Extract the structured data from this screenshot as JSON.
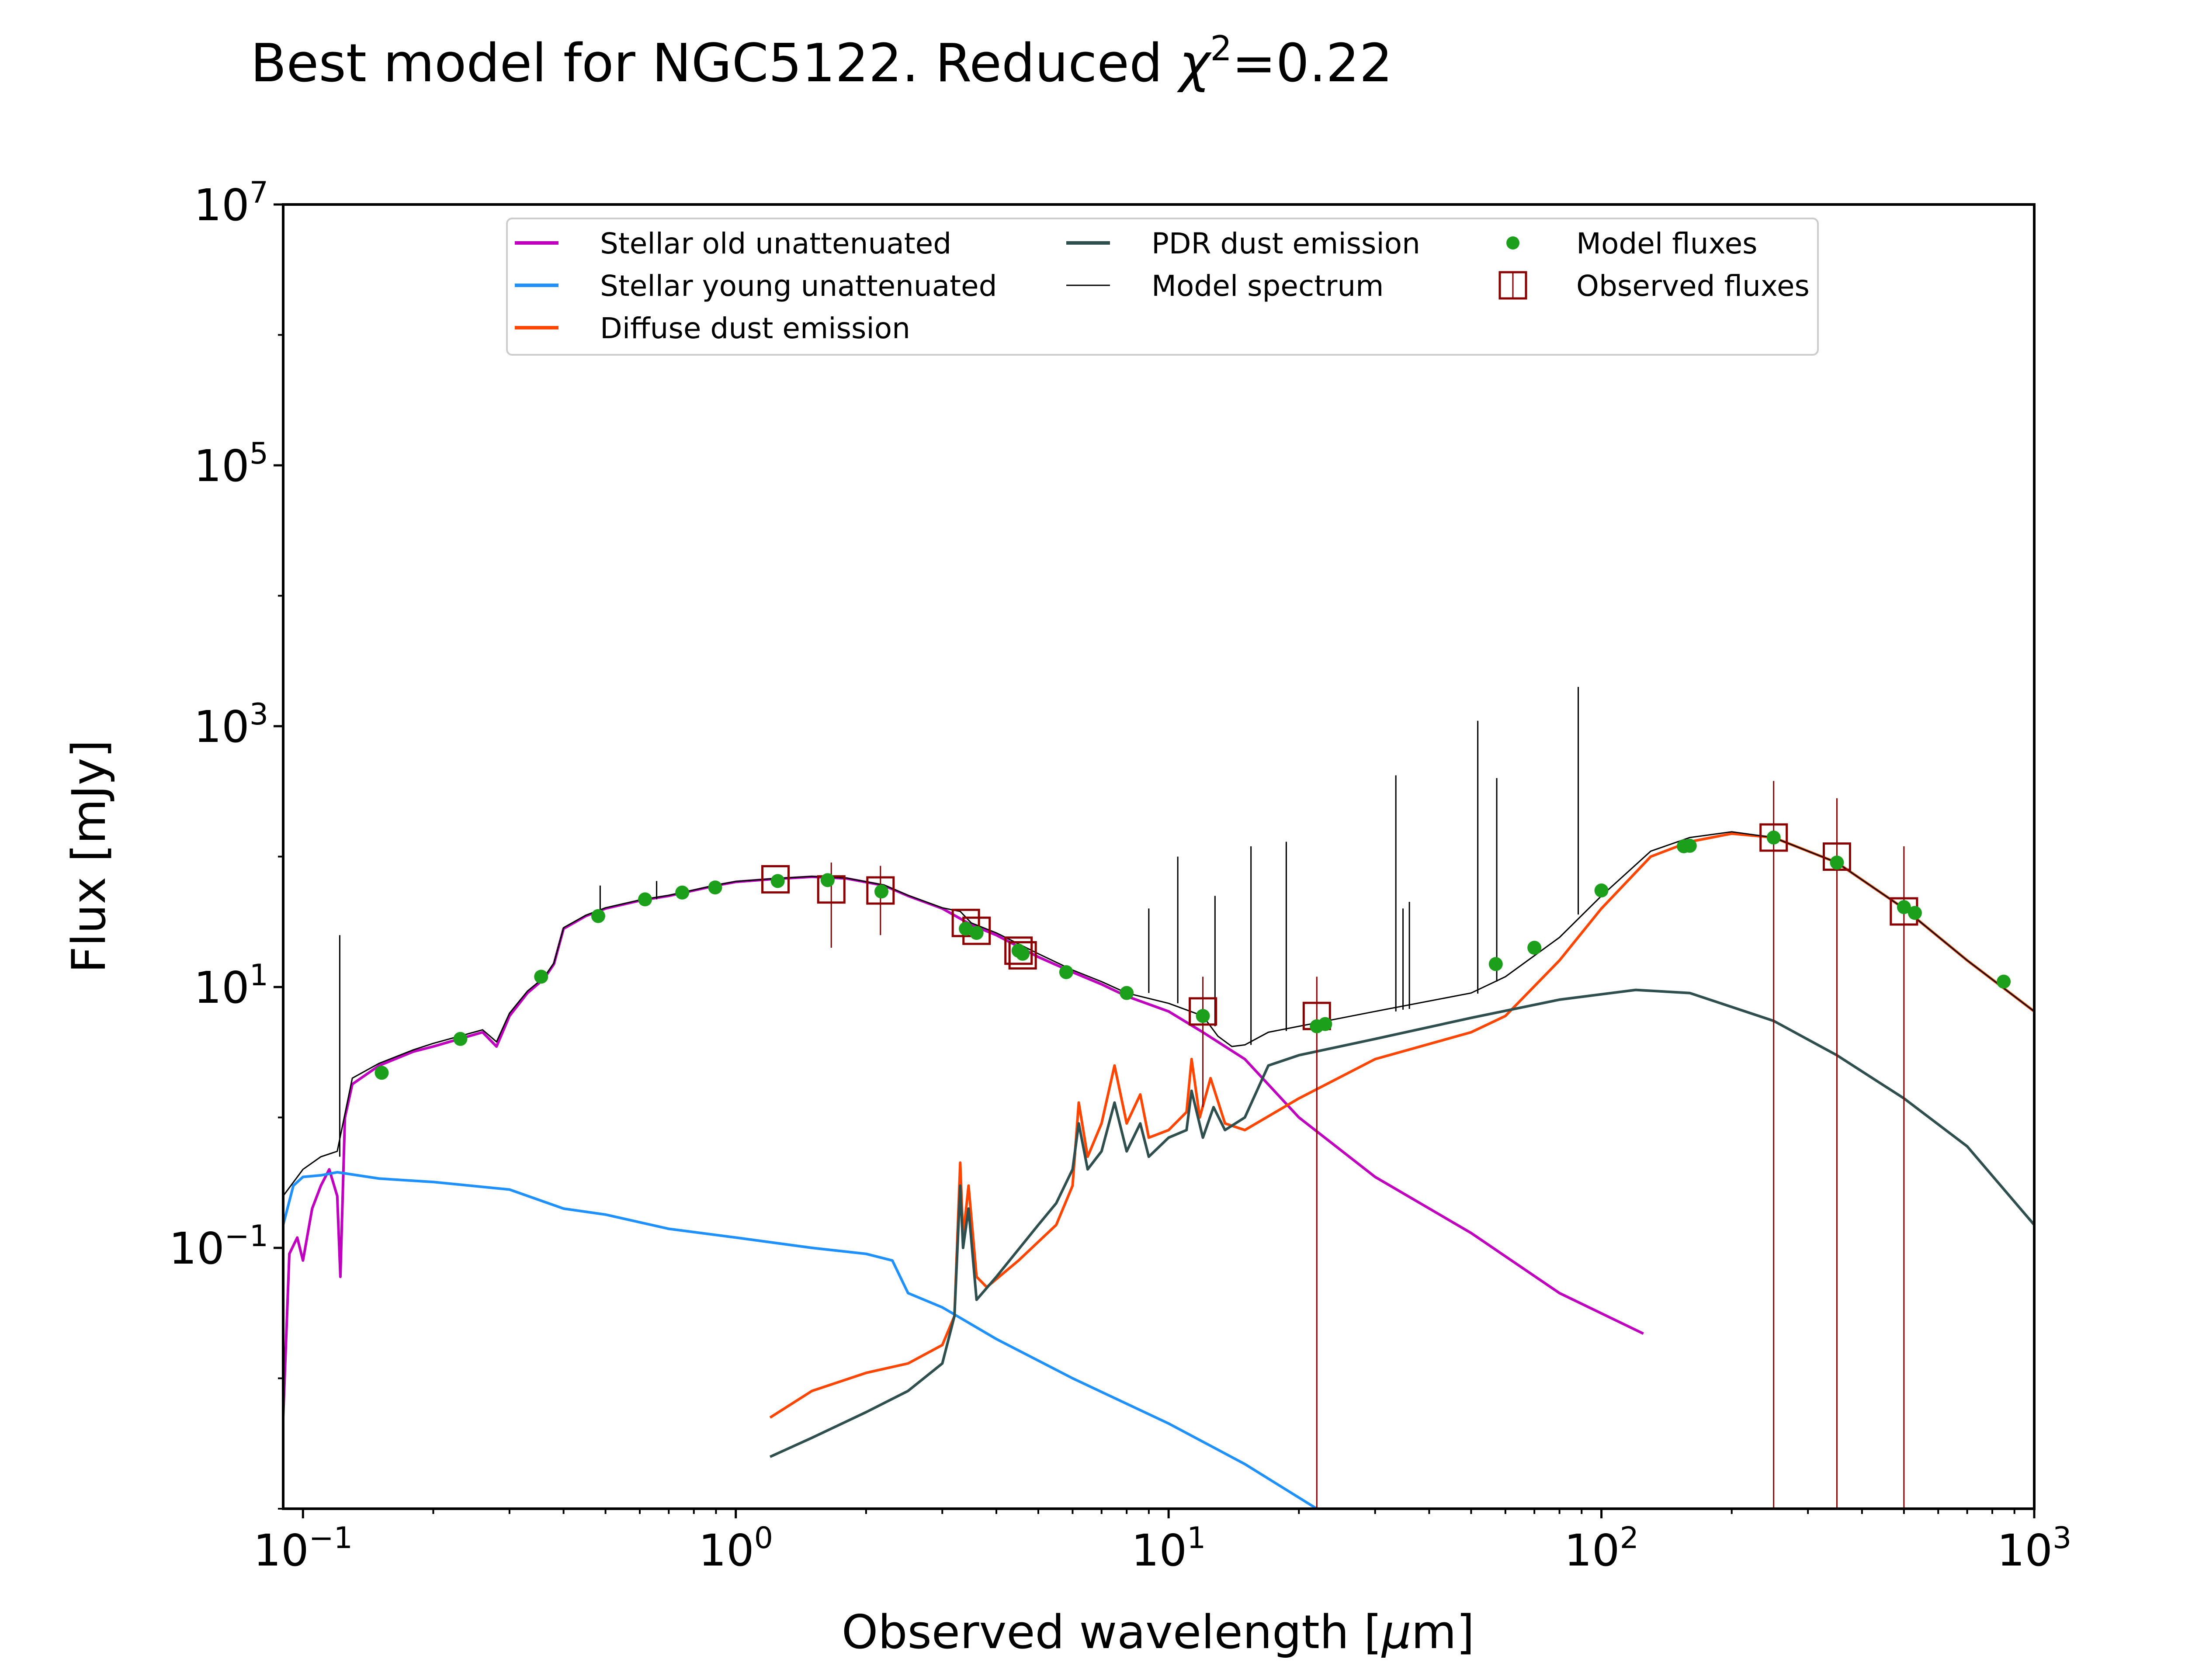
{
  "chart_data": {
    "type": "line",
    "title_main": "Best model for NGC5122. Reduced ",
    "title_chi": "χ",
    "title_sup": "2",
    "title_value": "=0.22",
    "xlabel_main": "Observed wavelength [",
    "xlabel_mu": "μ",
    "xlabel_unit": "m]",
    "ylabel": "Flux [mJy]",
    "x_scale": "log",
    "y_scale": "log",
    "xlim": [
      0.09,
      1000
    ],
    "ylim": [
      0.001,
      10000000
    ],
    "grid": false,
    "legend_placement": "upper-center",
    "x_ticks": [
      {
        "value": 0.1,
        "base": "10",
        "exp": "−1"
      },
      {
        "value": 1,
        "base": "10",
        "exp": "0"
      },
      {
        "value": 10,
        "base": "10",
        "exp": "1"
      },
      {
        "value": 100,
        "base": "10",
        "exp": "2"
      },
      {
        "value": 1000,
        "base": "10",
        "exp": "3"
      }
    ],
    "y_ticks": [
      {
        "value": 0.1,
        "base": "10",
        "exp": "−1"
      },
      {
        "value": 10,
        "base": "10",
        "exp": "1"
      },
      {
        "value": 1000,
        "base": "10",
        "exp": "3"
      },
      {
        "value": 100000,
        "base": "10",
        "exp": "5"
      },
      {
        "value": 10000000,
        "base": "10",
        "exp": "7"
      }
    ],
    "legend": [
      {
        "label": "Stellar old unattenuated",
        "kind": "line",
        "color": "#bf00bf",
        "col": 0,
        "row": 0
      },
      {
        "label": "Stellar young unattenuated",
        "kind": "line",
        "color": "#1e90ff",
        "col": 0,
        "row": 1
      },
      {
        "label": "Diffuse dust emission",
        "kind": "line",
        "color": "#ff4500",
        "col": 0,
        "row": 2
      },
      {
        "label": "PDR dust emission",
        "kind": "line",
        "color": "#2f4f4f",
        "col": 1,
        "row": 0
      },
      {
        "label": "Model spectrum",
        "kind": "thinline",
        "color": "#000000",
        "col": 1,
        "row": 1
      },
      {
        "label": "Model fluxes",
        "kind": "dot",
        "color": "#1ca01c",
        "col": 2,
        "row": 0
      },
      {
        "label": "Observed fluxes",
        "kind": "square",
        "color": "#8b0000",
        "col": 2,
        "row": 1
      }
    ],
    "series": [
      {
        "name": "Stellar old unattenuated",
        "color": "#bf00bf",
        "width": 6,
        "points": [
          [
            0.09,
            0.005
          ],
          [
            0.093,
            0.09
          ],
          [
            0.097,
            0.12
          ],
          [
            0.1,
            0.08
          ],
          [
            0.105,
            0.2
          ],
          [
            0.11,
            0.3
          ],
          [
            0.115,
            0.4
          ],
          [
            0.12,
            0.25
          ],
          [
            0.122,
            0.06
          ],
          [
            0.125,
            1.0
          ],
          [
            0.13,
            1.8
          ],
          [
            0.15,
            2.5
          ],
          [
            0.18,
            3.2
          ],
          [
            0.2,
            3.5
          ],
          [
            0.23,
            4.0
          ],
          [
            0.26,
            4.5
          ],
          [
            0.28,
            3.5
          ],
          [
            0.3,
            6.0
          ],
          [
            0.33,
            9.0
          ],
          [
            0.36,
            11.5
          ],
          [
            0.38,
            15.0
          ],
          [
            0.4,
            28.0
          ],
          [
            0.45,
            35.0
          ],
          [
            0.5,
            40.0
          ],
          [
            0.6,
            46.0
          ],
          [
            0.7,
            50.0
          ],
          [
            0.8,
            55.0
          ],
          [
            0.9,
            60.0
          ],
          [
            1.0,
            64.0
          ],
          [
            1.2,
            67.0
          ],
          [
            1.5,
            70.0
          ],
          [
            1.8,
            68.0
          ],
          [
            2.2,
            60.0
          ],
          [
            2.5,
            50.0
          ],
          [
            3.0,
            40.0
          ],
          [
            3.5,
            30.0
          ],
          [
            4.0,
            25.0
          ],
          [
            5.0,
            17.0
          ],
          [
            6.0,
            13.0
          ],
          [
            7.0,
            10.5
          ],
          [
            8.0,
            8.5
          ],
          [
            10.0,
            6.5
          ],
          [
            12.0,
            4.5
          ],
          [
            15.0,
            2.8
          ],
          [
            20.0,
            1.0
          ],
          [
            30.0,
            0.35
          ],
          [
            50.0,
            0.13
          ],
          [
            80.0,
            0.045
          ],
          [
            125.0,
            0.022
          ]
        ]
      },
      {
        "name": "Stellar young unattenuated",
        "color": "#1e90ff",
        "width": 6,
        "points": [
          [
            0.09,
            0.15
          ],
          [
            0.095,
            0.3
          ],
          [
            0.1,
            0.35
          ],
          [
            0.11,
            0.36
          ],
          [
            0.12,
            0.38
          ],
          [
            0.15,
            0.34
          ],
          [
            0.2,
            0.32
          ],
          [
            0.3,
            0.28
          ],
          [
            0.4,
            0.2
          ],
          [
            0.5,
            0.18
          ],
          [
            0.7,
            0.14
          ],
          [
            1.0,
            0.12
          ],
          [
            1.5,
            0.1
          ],
          [
            2.0,
            0.09
          ],
          [
            2.3,
            0.08
          ],
          [
            2.5,
            0.045
          ],
          [
            3.0,
            0.035
          ],
          [
            4.0,
            0.02
          ],
          [
            6.0,
            0.01
          ],
          [
            10.0,
            0.0045
          ],
          [
            15.0,
            0.0022
          ],
          [
            22.0,
            0.001
          ]
        ]
      },
      {
        "name": "Diffuse dust emission",
        "color": "#ff4500",
        "width": 6,
        "points": [
          [
            1.2,
            0.005
          ],
          [
            1.5,
            0.008
          ],
          [
            2.0,
            0.011
          ],
          [
            2.5,
            0.013
          ],
          [
            3.0,
            0.018
          ],
          [
            3.2,
            0.03
          ],
          [
            3.3,
            0.45
          ],
          [
            3.35,
            0.12
          ],
          [
            3.45,
            0.3
          ],
          [
            3.6,
            0.06
          ],
          [
            3.8,
            0.05
          ],
          [
            4.5,
            0.08
          ],
          [
            5.5,
            0.15
          ],
          [
            6.0,
            0.3
          ],
          [
            6.2,
            1.3
          ],
          [
            6.5,
            0.5
          ],
          [
            7.0,
            0.9
          ],
          [
            7.5,
            2.5
          ],
          [
            8.0,
            0.9
          ],
          [
            8.6,
            1.5
          ],
          [
            9.0,
            0.7
          ],
          [
            10.0,
            0.8
          ],
          [
            11.0,
            1.1
          ],
          [
            11.3,
            2.8
          ],
          [
            11.8,
            1.0
          ],
          [
            12.5,
            2.0
          ],
          [
            13.5,
            0.9
          ],
          [
            15.0,
            0.8
          ],
          [
            20.0,
            1.4
          ],
          [
            30.0,
            2.8
          ],
          [
            50.0,
            4.5
          ],
          [
            60.0,
            6.0
          ],
          [
            80.0,
            16.0
          ],
          [
            100.0,
            40.0
          ],
          [
            130.0,
            100.0
          ],
          [
            160.0,
            130.0
          ],
          [
            200.0,
            150.0
          ],
          [
            250.0,
            140.0
          ],
          [
            350.0,
            90.0
          ],
          [
            500.0,
            40.0
          ],
          [
            700.0,
            16.0
          ],
          [
            1000.0,
            6.5
          ]
        ]
      },
      {
        "name": "PDR dust emission",
        "color": "#2f4f4f",
        "width": 6,
        "points": [
          [
            1.2,
            0.0025
          ],
          [
            1.5,
            0.0035
          ],
          [
            2.0,
            0.0055
          ],
          [
            2.5,
            0.008
          ],
          [
            3.0,
            0.013
          ],
          [
            3.2,
            0.03
          ],
          [
            3.3,
            0.3
          ],
          [
            3.35,
            0.1
          ],
          [
            3.45,
            0.2
          ],
          [
            3.6,
            0.04
          ],
          [
            4.0,
            0.06
          ],
          [
            5.0,
            0.15
          ],
          [
            5.5,
            0.22
          ],
          [
            6.0,
            0.4
          ],
          [
            6.2,
            0.9
          ],
          [
            6.5,
            0.4
          ],
          [
            7.0,
            0.55
          ],
          [
            7.5,
            1.3
          ],
          [
            8.0,
            0.55
          ],
          [
            8.6,
            0.9
          ],
          [
            9.0,
            0.5
          ],
          [
            10.0,
            0.7
          ],
          [
            11.0,
            0.8
          ],
          [
            11.3,
            1.6
          ],
          [
            12.0,
            0.7
          ],
          [
            12.7,
            1.2
          ],
          [
            13.5,
            0.8
          ],
          [
            15.0,
            1.0
          ],
          [
            17.0,
            2.5
          ],
          [
            20.0,
            3.0
          ],
          [
            30.0,
            4.0
          ],
          [
            50.0,
            5.8
          ],
          [
            80.0,
            8.0
          ],
          [
            120.0,
            9.5
          ],
          [
            160.0,
            9.0
          ],
          [
            250.0,
            5.5
          ],
          [
            350.0,
            3.0
          ],
          [
            500.0,
            1.4
          ],
          [
            700.0,
            0.6
          ],
          [
            1000.0,
            0.15
          ]
        ]
      },
      {
        "name": "Model spectrum",
        "color": "#000000",
        "width": 3,
        "points": [
          [
            0.09,
            0.25
          ],
          [
            0.1,
            0.4
          ],
          [
            0.11,
            0.5
          ],
          [
            0.12,
            0.55
          ],
          [
            0.13,
            2.0
          ],
          [
            0.15,
            2.6
          ],
          [
            0.18,
            3.3
          ],
          [
            0.2,
            3.7
          ],
          [
            0.23,
            4.2
          ],
          [
            0.26,
            4.7
          ],
          [
            0.28,
            3.8
          ],
          [
            0.3,
            6.3
          ],
          [
            0.33,
            9.3
          ],
          [
            0.36,
            11.8
          ],
          [
            0.38,
            15.3
          ],
          [
            0.4,
            28.5
          ],
          [
            0.45,
            35.5
          ],
          [
            0.5,
            40.5
          ],
          [
            0.6,
            46.5
          ],
          [
            0.7,
            50.5
          ],
          [
            0.8,
            55.5
          ],
          [
            0.9,
            60.5
          ],
          [
            1.0,
            64.5
          ],
          [
            1.2,
            67.5
          ],
          [
            1.5,
            70.5
          ],
          [
            1.8,
            68.5
          ],
          [
            2.2,
            60.5
          ],
          [
            2.5,
            50.5
          ],
          [
            3.0,
            40.5
          ],
          [
            3.3,
            38.0
          ],
          [
            3.5,
            31.0
          ],
          [
            4.0,
            26.0
          ],
          [
            5.0,
            18.0
          ],
          [
            6.0,
            13.5
          ],
          [
            7.0,
            11.0
          ],
          [
            8.0,
            9.0
          ],
          [
            10.0,
            7.5
          ],
          [
            12.0,
            6.0
          ],
          [
            13.0,
            4.2
          ],
          [
            14.0,
            3.5
          ],
          [
            15.0,
            3.6
          ],
          [
            17.0,
            4.5
          ],
          [
            20.0,
            5.0
          ],
          [
            30.0,
            6.5
          ],
          [
            50.0,
            9.0
          ],
          [
            60.0,
            12.0
          ],
          [
            80.0,
            24.0
          ],
          [
            100.0,
            50.0
          ],
          [
            130.0,
            110.0
          ],
          [
            160.0,
            140.0
          ],
          [
            200.0,
            155.0
          ],
          [
            250.0,
            140.0
          ],
          [
            350.0,
            90.0
          ],
          [
            500.0,
            40.0
          ],
          [
            700.0,
            16.0
          ],
          [
            1000.0,
            6.5
          ]
        ]
      }
    ],
    "emission_lines": [
      {
        "x": 0.1216,
        "base": 0.5,
        "top": 25
      },
      {
        "x": 0.486,
        "base": 38,
        "top": 60
      },
      {
        "x": 0.6563,
        "base": 47,
        "top": 65
      },
      {
        "x": 9.0,
        "base": 9,
        "top": 40
      },
      {
        "x": 10.5,
        "base": 7.5,
        "top": 100
      },
      {
        "x": 12.8,
        "base": 5,
        "top": 50
      },
      {
        "x": 15.5,
        "base": 3.6,
        "top": 120
      },
      {
        "x": 18.7,
        "base": 4.6,
        "top": 130
      },
      {
        "x": 33.5,
        "base": 6.5,
        "top": 420
      },
      {
        "x": 34.8,
        "base": 6.7,
        "top": 40
      },
      {
        "x": 36.0,
        "base": 6.8,
        "top": 45
      },
      {
        "x": 51.8,
        "base": 8.9,
        "top": 1100
      },
      {
        "x": 57.3,
        "base": 11,
        "top": 400
      },
      {
        "x": 88.4,
        "base": 36,
        "top": 2000
      }
    ],
    "model_fluxes": [
      [
        0.152,
        2.2
      ],
      [
        0.231,
        4.0
      ],
      [
        0.355,
        12.0
      ],
      [
        0.481,
        35.0
      ],
      [
        0.617,
        47.0
      ],
      [
        0.752,
        53.0
      ],
      [
        0.896,
        58.0
      ],
      [
        1.25,
        65.0
      ],
      [
        1.63,
        66.0
      ],
      [
        2.17,
        54.0
      ],
      [
        3.4,
        28.0
      ],
      [
        3.6,
        26.0
      ],
      [
        4.5,
        19.0
      ],
      [
        4.6,
        18.0
      ],
      [
        5.8,
        13.0
      ],
      [
        8.0,
        9.0
      ],
      [
        12.0,
        6.0
      ],
      [
        22.0,
        5.0
      ],
      [
        23.0,
        5.2
      ],
      [
        57.0,
        15.0
      ],
      [
        70.0,
        20.0
      ],
      [
        100.0,
        55.0
      ],
      [
        155.0,
        120.0
      ],
      [
        160.0,
        121.0
      ],
      [
        250.0,
        140.0
      ],
      [
        350.0,
        90.0
      ],
      [
        500.0,
        41.0
      ],
      [
        530.0,
        37.0
      ],
      [
        850.0,
        11.0
      ]
    ],
    "observed_fluxes": [
      {
        "x": 1.235,
        "y": 67,
        "lo": 67,
        "hi": 67
      },
      {
        "x": 1.662,
        "y": 56,
        "lo": 20,
        "hi": 90
      },
      {
        "x": 2.159,
        "y": 55,
        "lo": 25,
        "hi": 85
      },
      {
        "x": 3.4,
        "y": 31,
        "lo": 31,
        "hi": 31
      },
      {
        "x": 3.6,
        "y": 27,
        "lo": 27,
        "hi": 27
      },
      {
        "x": 4.5,
        "y": 19,
        "lo": 19,
        "hi": 19
      },
      {
        "x": 4.6,
        "y": 17.5,
        "lo": 17.5,
        "hi": 17.5
      },
      {
        "x": 12.0,
        "y": 6.5,
        "lo": 1.2,
        "hi": 12
      },
      {
        "x": 22.0,
        "y": 6.0,
        "lo": 0.001,
        "hi": 12
      },
      {
        "x": 250.0,
        "y": 140,
        "lo": 0.001,
        "hi": 380
      },
      {
        "x": 350.0,
        "y": 100,
        "lo": 0.001,
        "hi": 280
      },
      {
        "x": 500.0,
        "y": 38,
        "lo": 0.001,
        "hi": 120
      }
    ]
  }
}
